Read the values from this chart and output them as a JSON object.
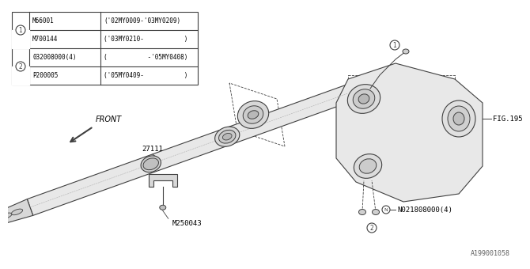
{
  "bg_color": "#ffffff",
  "line_color": "#404040",
  "table": {
    "rows": [
      [
        "M66001",
        "('02MY0009-'03MY0209)"
      ],
      [
        "M700144",
        "('03MY0210-           )"
      ],
      [
        "032008000(4)",
        "(           -'05MY0408)"
      ],
      [
        "P200005",
        "('05MY0409-           )"
      ]
    ]
  },
  "labels": {
    "front_text": "FRONT",
    "part_27111_label": "27111",
    "part_M250043_label": "M250043",
    "fig195_label": "FIG.195",
    "N021808000_label": "N021808000(4)"
  },
  "footer": "A199001058"
}
